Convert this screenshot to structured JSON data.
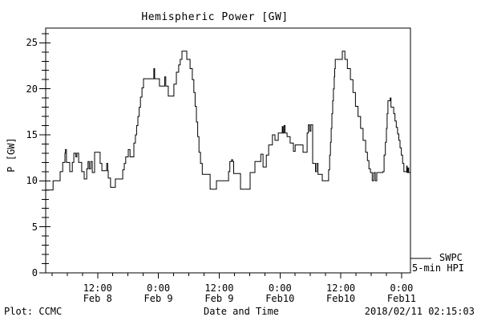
{
  "title": "Hemispheric Power [GW]",
  "legend": {
    "line1": "SWPC",
    "line2": "5-min HPI"
  },
  "footer": {
    "left": "Plot: CCMC",
    "center": "Date and Time",
    "right": "2018/02/11 02:15:03"
  },
  "colors": {
    "background": "#ffffff",
    "line": "#000000",
    "axis": "#000000",
    "text": "#000000"
  },
  "chart_data": {
    "type": "line",
    "style": "step",
    "title": "Hemispheric Power [GW]",
    "xlabel": "Date and Time",
    "ylabel": "P [GW]",
    "legend_entry": "SWPC 5-min HPI",
    "legend_position": "right-bottom-outside",
    "grid": false,
    "x_unit": "hours since 2018-02-08 00:00 UT",
    "xlim": [
      1.75,
      73.75
    ],
    "ylim": [
      0,
      26.6
    ],
    "y_major_ticks": [
      0,
      5,
      10,
      15,
      20,
      25
    ],
    "y_minor_step": 1,
    "x_minor_step_hours": 3,
    "x_major_ticks": [
      {
        "t": 12,
        "time": "12:00",
        "date": "Feb 8"
      },
      {
        "t": 24,
        "time": "0:00",
        "date": "Feb 9"
      },
      {
        "t": 36,
        "time": "12:00",
        "date": "Feb 9"
      },
      {
        "t": 48,
        "time": "0:00",
        "date": "Feb10"
      },
      {
        "t": 60,
        "time": "12:00",
        "date": "Feb10"
      },
      {
        "t": 72,
        "time": "0:00",
        "date": "Feb11"
      }
    ],
    "series": [
      {
        "name": "SWPC 5-min HPI",
        "color": "#000000",
        "points": [
          [
            1.75,
            9.0
          ],
          [
            3.2,
            10.0
          ],
          [
            4.6,
            11.0
          ],
          [
            5.1,
            12.0
          ],
          [
            5.55,
            13.0
          ],
          [
            5.65,
            13.4
          ],
          [
            5.85,
            12.0
          ],
          [
            6.5,
            11.0
          ],
          [
            7.0,
            12.0
          ],
          [
            7.3,
            13.0
          ],
          [
            7.7,
            12.6
          ],
          [
            7.9,
            13.0
          ],
          [
            8.25,
            12.0
          ],
          [
            8.85,
            11.0
          ],
          [
            9.35,
            10.2
          ],
          [
            9.85,
            11.3
          ],
          [
            10.1,
            12.1
          ],
          [
            10.35,
            11.3
          ],
          [
            10.65,
            12.1
          ],
          [
            10.95,
            10.9
          ],
          [
            11.4,
            13.1
          ],
          [
            12.5,
            11.9
          ],
          [
            12.85,
            11.1
          ],
          [
            13.8,
            11.9
          ],
          [
            14.0,
            11.1
          ],
          [
            14.1,
            10.3
          ],
          [
            14.55,
            9.3
          ],
          [
            15.5,
            10.2
          ],
          [
            16.95,
            11.2
          ],
          [
            17.25,
            11.9
          ],
          [
            17.55,
            12.6
          ],
          [
            18.05,
            13.4
          ],
          [
            18.4,
            12.6
          ],
          [
            19.15,
            14.1
          ],
          [
            19.45,
            15.0
          ],
          [
            19.7,
            16.0
          ],
          [
            19.95,
            17.0
          ],
          [
            20.2,
            18.0
          ],
          [
            20.45,
            19.1
          ],
          [
            20.75,
            20.1
          ],
          [
            21.05,
            21.1
          ],
          [
            23.1,
            22.2
          ],
          [
            23.25,
            21.1
          ],
          [
            24.2,
            20.3
          ],
          [
            25.25,
            21.3
          ],
          [
            25.45,
            20.3
          ],
          [
            25.95,
            19.2
          ],
          [
            27.05,
            20.5
          ],
          [
            27.55,
            21.8
          ],
          [
            28.0,
            22.6
          ],
          [
            28.3,
            23.2
          ],
          [
            28.65,
            24.1
          ],
          [
            29.6,
            23.2
          ],
          [
            30.25,
            22.2
          ],
          [
            30.7,
            21.0
          ],
          [
            31.0,
            19.6
          ],
          [
            31.25,
            18.1
          ],
          [
            31.5,
            16.4
          ],
          [
            31.75,
            14.8
          ],
          [
            32.0,
            13.1
          ],
          [
            32.3,
            11.9
          ],
          [
            32.65,
            10.7
          ],
          [
            34.2,
            9.1
          ],
          [
            35.45,
            10.0
          ],
          [
            37.85,
            11.0
          ],
          [
            38.1,
            12.1
          ],
          [
            38.45,
            12.3
          ],
          [
            38.65,
            12.1
          ],
          [
            38.85,
            10.8
          ],
          [
            40.2,
            9.1
          ],
          [
            42.1,
            10.9
          ],
          [
            43.05,
            12.1
          ],
          [
            44.2,
            12.9
          ],
          [
            44.65,
            11.5
          ],
          [
            45.3,
            12.8
          ],
          [
            45.75,
            13.9
          ],
          [
            46.5,
            15.0
          ],
          [
            47.0,
            14.4
          ],
          [
            47.65,
            15.2
          ],
          [
            48.45,
            15.9
          ],
          [
            48.6,
            15.2
          ],
          [
            48.8,
            16.0
          ],
          [
            49.0,
            15.2
          ],
          [
            49.4,
            14.8
          ],
          [
            50.0,
            14.1
          ],
          [
            50.65,
            13.2
          ],
          [
            51.0,
            13.9
          ],
          [
            52.55,
            13.1
          ],
          [
            53.35,
            15.2
          ],
          [
            53.6,
            16.1
          ],
          [
            53.85,
            15.4
          ],
          [
            54.1,
            16.1
          ],
          [
            54.45,
            11.9
          ],
          [
            55.0,
            11.0
          ],
          [
            55.25,
            11.9
          ],
          [
            55.5,
            10.7
          ],
          [
            56.35,
            10.0
          ],
          [
            57.6,
            11.2
          ],
          [
            57.8,
            12.8
          ],
          [
            57.95,
            14.2
          ],
          [
            58.1,
            15.7
          ],
          [
            58.25,
            17.3
          ],
          [
            58.4,
            18.7
          ],
          [
            58.55,
            20.0
          ],
          [
            58.7,
            21.3
          ],
          [
            58.8,
            22.2
          ],
          [
            58.9,
            23.2
          ],
          [
            60.3,
            24.1
          ],
          [
            60.8,
            23.2
          ],
          [
            61.3,
            22.2
          ],
          [
            61.9,
            21.0
          ],
          [
            62.4,
            19.6
          ],
          [
            62.9,
            18.1
          ],
          [
            63.4,
            17.0
          ],
          [
            63.9,
            15.7
          ],
          [
            64.4,
            14.4
          ],
          [
            64.9,
            13.1
          ],
          [
            65.25,
            12.2
          ],
          [
            65.55,
            11.3
          ],
          [
            65.85,
            10.9
          ],
          [
            66.2,
            10.0
          ],
          [
            66.5,
            10.9
          ],
          [
            66.8,
            10.0
          ],
          [
            67.1,
            10.9
          ],
          [
            68.3,
            11.0
          ],
          [
            68.55,
            12.8
          ],
          [
            68.8,
            14.2
          ],
          [
            69.0,
            15.7
          ],
          [
            69.15,
            17.3
          ],
          [
            69.3,
            18.7
          ],
          [
            69.75,
            19.0
          ],
          [
            69.9,
            18.0
          ],
          [
            70.45,
            17.3
          ],
          [
            70.7,
            16.5
          ],
          [
            70.95,
            15.8
          ],
          [
            71.2,
            15.1
          ],
          [
            71.45,
            14.4
          ],
          [
            71.7,
            13.6
          ],
          [
            71.95,
            12.8
          ],
          [
            72.2,
            11.9
          ],
          [
            72.45,
            11.0
          ],
          [
            73.0,
            11.6
          ],
          [
            73.1,
            10.9
          ],
          [
            73.25,
            11.4
          ],
          [
            73.4,
            10.9
          ]
        ]
      }
    ]
  }
}
